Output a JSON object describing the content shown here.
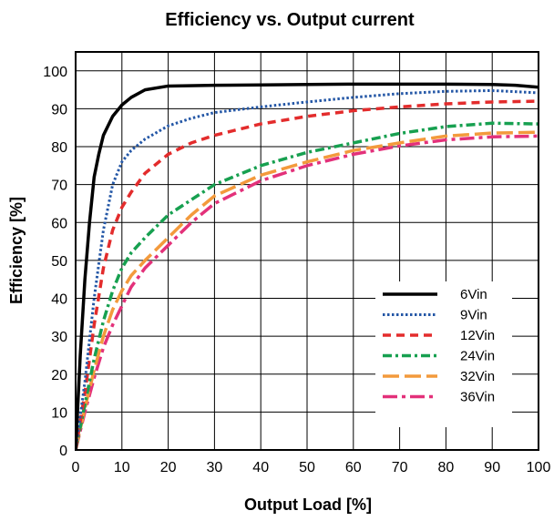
{
  "chart_data": {
    "type": "line",
    "title": "Efficiency vs. Output current",
    "xlabel": "Output Load [%]",
    "ylabel": "Efficiency [%]",
    "xlim": [
      0,
      100
    ],
    "ylim": [
      0,
      105
    ],
    "x_ticks": [
      0,
      10,
      20,
      30,
      40,
      50,
      60,
      70,
      80,
      90,
      100
    ],
    "y_ticks": [
      0,
      10,
      20,
      30,
      40,
      50,
      60,
      70,
      80,
      90,
      100
    ],
    "grid": true,
    "legend_position": "bottom-right",
    "series": [
      {
        "name": "6Vin",
        "color": "#000000",
        "style": "solid",
        "x": [
          0,
          1,
          2,
          3,
          4,
          5,
          6,
          8,
          10,
          12,
          15,
          20,
          30,
          40,
          50,
          60,
          70,
          80,
          90,
          95,
          100
        ],
        "y": [
          0,
          25,
          45,
          60,
          72,
          78,
          83,
          88,
          91,
          93,
          95,
          96,
          96.2,
          96.3,
          96.4,
          96.5,
          96.5,
          96.5,
          96.4,
          96.2,
          95.7
        ]
      },
      {
        "name": "9Vin",
        "color": "#2457a6",
        "style": "dotted",
        "x": [
          0,
          2,
          4,
          6,
          8,
          10,
          12,
          15,
          20,
          25,
          30,
          40,
          50,
          60,
          70,
          80,
          90,
          100
        ],
        "y": [
          0,
          18,
          40,
          58,
          70,
          76,
          79,
          82,
          85.5,
          87.5,
          89,
          90.5,
          91.8,
          93,
          94,
          94.6,
          94.8,
          94.2
        ]
      },
      {
        "name": "12Vin",
        "color": "#e32c2c",
        "style": "dashed",
        "x": [
          0,
          2,
          4,
          6,
          8,
          10,
          12,
          15,
          20,
          25,
          30,
          40,
          50,
          60,
          70,
          80,
          90,
          100
        ],
        "y": [
          0,
          15,
          33,
          48,
          58,
          64,
          68,
          73,
          78,
          81,
          83,
          86,
          88,
          89.5,
          90.5,
          91.3,
          91.8,
          92
        ]
      },
      {
        "name": "24Vin",
        "color": "#17a050",
        "style": "dashdot",
        "x": [
          0,
          2,
          4,
          6,
          8,
          10,
          12,
          15,
          20,
          25,
          30,
          40,
          50,
          60,
          70,
          80,
          90,
          100
        ],
        "y": [
          0,
          12,
          24,
          34,
          42,
          48,
          52,
          56,
          62,
          66,
          70,
          75,
          78.5,
          81,
          83.5,
          85.3,
          86.2,
          86
        ]
      },
      {
        "name": "32Vin",
        "color": "#f39a3c",
        "style": "longdash",
        "x": [
          0,
          2,
          4,
          6,
          8,
          10,
          12,
          15,
          20,
          25,
          30,
          40,
          50,
          60,
          70,
          80,
          90,
          100
        ],
        "y": [
          0,
          11,
          21,
          30,
          37,
          42,
          46,
          50,
          56,
          62,
          67,
          72.5,
          76,
          79,
          81,
          82.8,
          83.6,
          83.8
        ]
      },
      {
        "name": "36Vin",
        "color": "#e3317a",
        "style": "longdashdot",
        "x": [
          0,
          2,
          4,
          6,
          8,
          10,
          12,
          15,
          20,
          25,
          30,
          40,
          50,
          60,
          70,
          80,
          90,
          100
        ],
        "y": [
          0,
          10,
          19,
          27,
          33,
          38,
          43,
          48,
          54,
          60,
          65,
          71,
          75,
          78,
          80.2,
          81.8,
          82.6,
          82.8
        ]
      }
    ]
  }
}
